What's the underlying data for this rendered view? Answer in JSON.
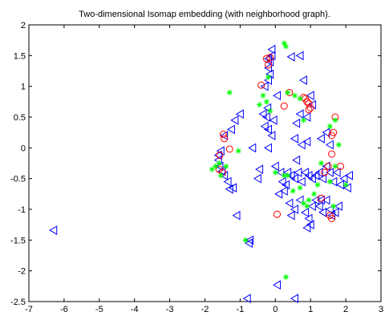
{
  "chart_data": {
    "type": "scatter",
    "title": "Two-dimensional Isomap embedding (with neighborhood graph).",
    "xlim": [
      -7,
      3
    ],
    "ylim": [
      -2.5,
      2
    ],
    "x_ticks": [
      "-7",
      "-6",
      "-5",
      "-4",
      "-3",
      "-2",
      "-1",
      "0",
      "1",
      "2",
      "3"
    ],
    "y_ticks": [
      "-2.5",
      "-2",
      "-1.5",
      "-1",
      "-0.5",
      "0",
      "0.5",
      "1",
      "1.5",
      "2"
    ],
    "grid": false,
    "series": [
      {
        "marker": "triangle-left",
        "color": "#0000ff",
        "points": [
          [
            -6.3,
            -1.34
          ],
          [
            -0.8,
            -2.45
          ],
          [
            0.05,
            -2.23
          ],
          [
            0.55,
            -2.45
          ],
          [
            -1.62,
            -0.12
          ],
          [
            -1.62,
            -0.2
          ],
          [
            -1.58,
            -0.3
          ],
          [
            -1.52,
            -0.38
          ],
          [
            -1.45,
            -0.45
          ],
          [
            -1.35,
            -0.55
          ],
          [
            -1.3,
            -0.67
          ],
          [
            -1.55,
            -0.05
          ],
          [
            -1.45,
            0.2
          ],
          [
            -1.25,
            0.3
          ],
          [
            -1.2,
            -0.65
          ],
          [
            -1.1,
            -1.1
          ],
          [
            -0.75,
            -1.55
          ],
          [
            -0.72,
            -1.5
          ],
          [
            -1.15,
            0.45
          ],
          [
            -1.0,
            0.55
          ],
          [
            -0.65,
            0.0
          ],
          [
            -0.5,
            -0.5
          ],
          [
            -0.45,
            -0.35
          ],
          [
            -0.35,
            0.55
          ],
          [
            -0.3,
            0.35
          ],
          [
            -0.25,
            0.5
          ],
          [
            -0.2,
            0.3
          ],
          [
            -0.2,
            0.0
          ],
          [
            -0.22,
            0.65
          ],
          [
            -0.3,
            1.0
          ],
          [
            -0.2,
            1.1
          ],
          [
            -0.15,
            1.2
          ],
          [
            -0.2,
            1.3
          ],
          [
            -0.15,
            1.4
          ],
          [
            -0.1,
            1.5
          ],
          [
            -0.1,
            1.6
          ],
          [
            -0.2,
            1.45
          ],
          [
            0.05,
            0.85
          ],
          [
            -0.1,
            0.2
          ],
          [
            -0.05,
            0.45
          ],
          [
            0.45,
            1.48
          ],
          [
            0.7,
            1.5
          ],
          [
            0.8,
            1.1
          ],
          [
            0.6,
            0.4
          ],
          [
            0.55,
            0.15
          ],
          [
            0.75,
            0.05
          ],
          [
            0.9,
            0.1
          ],
          [
            0.7,
            0.55
          ],
          [
            0.9,
            0.5
          ],
          [
            1.0,
            0.85
          ],
          [
            1.05,
            0.7
          ],
          [
            0.35,
            -0.4
          ],
          [
            0.45,
            -0.45
          ],
          [
            0.55,
            -0.5
          ],
          [
            0.65,
            -0.4
          ],
          [
            0.75,
            -0.55
          ],
          [
            0.85,
            -0.4
          ],
          [
            0.95,
            -0.45
          ],
          [
            1.05,
            -0.5
          ],
          [
            1.15,
            -0.45
          ],
          [
            1.25,
            -0.4
          ],
          [
            1.35,
            -0.5
          ],
          [
            1.45,
            -0.3
          ],
          [
            1.55,
            -0.4
          ],
          [
            1.65,
            -0.55
          ],
          [
            1.75,
            -0.4
          ],
          [
            1.85,
            -0.6
          ],
          [
            1.95,
            -0.5
          ],
          [
            2.05,
            -0.65
          ],
          [
            2.1,
            -0.45
          ],
          [
            0.2,
            -0.55
          ],
          [
            0.1,
            -0.75
          ],
          [
            0.25,
            -0.7
          ],
          [
            0.4,
            -0.9
          ],
          [
            0.55,
            -1.0
          ],
          [
            0.7,
            -0.85
          ],
          [
            0.85,
            -1.05
          ],
          [
            0.95,
            -1.15
          ],
          [
            1.05,
            -0.95
          ],
          [
            1.15,
            -0.85
          ],
          [
            1.25,
            -0.95
          ],
          [
            1.35,
            -1.05
          ],
          [
            1.45,
            -0.85
          ],
          [
            1.55,
            -1.0
          ],
          [
            1.6,
            -1.1
          ],
          [
            1.7,
            -1.05
          ],
          [
            1.8,
            -0.95
          ],
          [
            0.9,
            -1.3
          ],
          [
            1.0,
            -1.25
          ],
          [
            1.3,
            -0.85
          ],
          [
            1.45,
            0.25
          ],
          [
            1.55,
            0.05
          ],
          [
            1.3,
            0.15
          ],
          [
            0.0,
            -0.3
          ],
          [
            0.15,
            -0.4
          ],
          [
            0.3,
            -0.6
          ],
          [
            0.45,
            -1.1
          ],
          [
            0.6,
            -0.2
          ]
        ]
      },
      {
        "marker": "circle",
        "color": "#ff0000",
        "points": [
          [
            -1.58,
            -0.12
          ],
          [
            -1.6,
            -0.35
          ],
          [
            -1.5,
            -0.4
          ],
          [
            -1.45,
            0.15
          ],
          [
            -1.48,
            0.22
          ],
          [
            -1.3,
            -0.02
          ],
          [
            -0.4,
            1.02
          ],
          [
            -0.25,
            1.45
          ],
          [
            -0.2,
            1.35
          ],
          [
            -0.15,
            1.47
          ],
          [
            0.25,
            0.68
          ],
          [
            0.4,
            0.9
          ],
          [
            0.85,
            0.8
          ],
          [
            0.9,
            0.75
          ],
          [
            0.95,
            0.62
          ],
          [
            1.0,
            0.65
          ],
          [
            0.95,
            0.72
          ],
          [
            0.8,
            0.82
          ],
          [
            1.5,
            -0.3
          ],
          [
            1.4,
            -0.4
          ],
          [
            1.6,
            0.2
          ],
          [
            1.65,
            0.25
          ],
          [
            1.6,
            -0.1
          ],
          [
            1.85,
            -0.3
          ],
          [
            0.05,
            -1.08
          ],
          [
            1.55,
            -1.1
          ],
          [
            1.6,
            -1.15
          ],
          [
            1.3,
            -0.82
          ],
          [
            1.7,
            0.5
          ]
        ]
      },
      {
        "marker": "star",
        "color": "#00ff00",
        "points": [
          [
            -1.8,
            -0.35
          ],
          [
            -1.7,
            -0.3
          ],
          [
            -1.6,
            -0.25
          ],
          [
            -1.55,
            -0.45
          ],
          [
            -1.4,
            -0.3
          ],
          [
            -1.3,
            0.9
          ],
          [
            -1.05,
            -0.05
          ],
          [
            -0.85,
            -1.5
          ],
          [
            -0.45,
            0.7
          ],
          [
            -0.35,
            0.85
          ],
          [
            -0.25,
            0.75
          ],
          [
            -0.2,
            1.15
          ],
          [
            -0.15,
            0.6
          ],
          [
            0.25,
            1.7
          ],
          [
            0.3,
            1.65
          ],
          [
            0.35,
            0.9
          ],
          [
            0.55,
            0.85
          ],
          [
            0.7,
            0.8
          ],
          [
            0.8,
            0.45
          ],
          [
            1.55,
            0.35
          ],
          [
            1.7,
            0.45
          ],
          [
            1.8,
            0.05
          ],
          [
            0.0,
            -0.4
          ],
          [
            0.25,
            -0.45
          ],
          [
            0.35,
            -0.45
          ],
          [
            0.5,
            -0.7
          ],
          [
            0.7,
            -0.65
          ],
          [
            0.8,
            -0.9
          ],
          [
            0.9,
            -0.95
          ],
          [
            1.2,
            -0.6
          ],
          [
            1.3,
            -0.25
          ],
          [
            1.55,
            -0.55
          ],
          [
            1.7,
            -0.3
          ],
          [
            2.0,
            -0.6
          ],
          [
            0.3,
            -2.1
          ],
          [
            0.95,
            -0.85
          ],
          [
            1.65,
            -0.95
          ],
          [
            1.1,
            -0.75
          ]
        ]
      }
    ]
  }
}
